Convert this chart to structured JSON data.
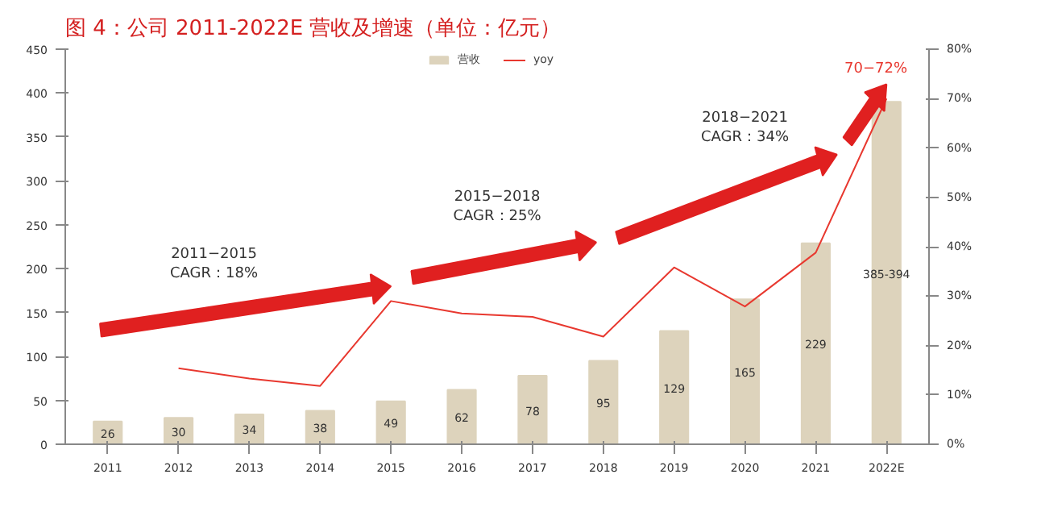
{
  "chart_data": {
    "type": "bar",
    "title": "图 4：公司 2011-2022E 营收及增速（单位：亿元）",
    "categories": [
      "2011",
      "2012",
      "2013",
      "2014",
      "2015",
      "2016",
      "2017",
      "2018",
      "2019",
      "2020",
      "2021",
      "2022E"
    ],
    "series": [
      {
        "name": "营收",
        "color": "#ddd3bc",
        "values": [
          26,
          30,
          34,
          38,
          49,
          62,
          78,
          95,
          129,
          165,
          229,
          390
        ],
        "value_labels": [
          "26",
          "30",
          "34",
          "38",
          "49",
          "62",
          "78",
          "95",
          "129",
          "165",
          "229",
          "385-394"
        ]
      },
      {
        "name": "yoy",
        "type": "line",
        "axis": "y2",
        "color": "#e8382f",
        "values": [
          null,
          15.4,
          13.3,
          11.8,
          29,
          26.5,
          25.8,
          21.8,
          35.8,
          27.9,
          38.8,
          70
        ]
      }
    ],
    "ylim": [
      0,
      450
    ],
    "yticks": [
      0,
      50,
      100,
      150,
      200,
      250,
      300,
      350,
      400,
      450
    ],
    "y2lim": [
      0,
      80
    ],
    "y2ticks": [
      {
        "value": 0,
        "label": "0%"
      },
      {
        "value": 10,
        "label": "10%"
      },
      {
        "value": 20,
        "label": "20%"
      },
      {
        "value": 30,
        "label": "30%"
      },
      {
        "value": 40,
        "label": "40%"
      },
      {
        "value": 50,
        "label": "50%"
      },
      {
        "value": 60,
        "label": "60%"
      },
      {
        "value": 70,
        "label": "70%"
      },
      {
        "value": 80,
        "label": "80%"
      }
    ],
    "annotations": [
      "2011−2015\nCAGR：18%",
      "2015−2018\nCAGR：25%",
      "2018−2021\nCAGR：34%",
      "70−72%"
    ],
    "legend": "top",
    "grid": false
  }
}
